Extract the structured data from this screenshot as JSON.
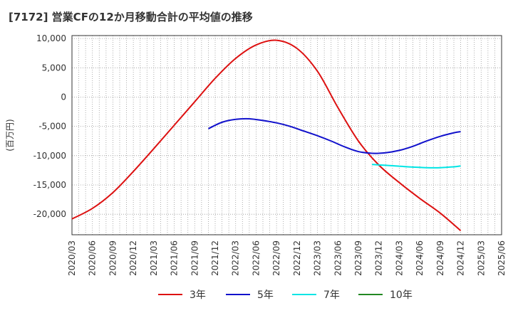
{
  "chart_data": {
    "type": "line",
    "title": "[7172]  営業CFの12か月移動合計の平均値の推移",
    "ylabel": "(百万円)",
    "xlabel": "",
    "ylim": [
      -23500,
      10500
    ],
    "yticks": [
      10000,
      5000,
      0,
      -5000,
      -10000,
      -15000,
      -20000
    ],
    "ytick_labels": [
      "10,000",
      "5,000",
      "0",
      "-5,000",
      "-10,000",
      "-15,000",
      "-20,000"
    ],
    "xticks": [
      "2020/03",
      "2020/06",
      "2020/09",
      "2020/12",
      "2021/03",
      "2021/06",
      "2021/09",
      "2021/12",
      "2022/03",
      "2022/06",
      "2022/09",
      "2022/12",
      "2023/03",
      "2023/06",
      "2023/09",
      "2023/12",
      "2024/03",
      "2024/06",
      "2024/09",
      "2024/12",
      "2025/03",
      "2025/06"
    ],
    "grid": true,
    "legend_position": "bottom",
    "series": [
      {
        "name": "3年",
        "color": "#dd1111",
        "points": [
          [
            "2020/03",
            -20800
          ],
          [
            "2020/06",
            -19000
          ],
          [
            "2020/09",
            -16300
          ],
          [
            "2020/12",
            -12700
          ],
          [
            "2021/03",
            -8800
          ],
          [
            "2021/06",
            -4800
          ],
          [
            "2021/09",
            -800
          ],
          [
            "2021/12",
            3200
          ],
          [
            "2022/03",
            6600
          ],
          [
            "2022/06",
            8900
          ],
          [
            "2022/09",
            9700
          ],
          [
            "2022/12",
            8300
          ],
          [
            "2023/03",
            4400
          ],
          [
            "2023/06",
            -1800
          ],
          [
            "2023/09",
            -7500
          ],
          [
            "2023/12",
            -11600
          ],
          [
            "2024/03",
            -14600
          ],
          [
            "2024/06",
            -17300
          ],
          [
            "2024/09",
            -19800
          ],
          [
            "2024/12",
            -22800
          ]
        ]
      },
      {
        "name": "5年",
        "color": "#1111cc",
        "points": [
          [
            "2021/11",
            -5400
          ],
          [
            "2022/01",
            -4300
          ],
          [
            "2022/03",
            -3800
          ],
          [
            "2022/05",
            -3700
          ],
          [
            "2022/07",
            -4000
          ],
          [
            "2022/09",
            -4400
          ],
          [
            "2022/11",
            -5000
          ],
          [
            "2023/01",
            -5800
          ],
          [
            "2023/03",
            -6600
          ],
          [
            "2023/05",
            -7500
          ],
          [
            "2023/07",
            -8500
          ],
          [
            "2023/09",
            -9300
          ],
          [
            "2023/11",
            -9600
          ],
          [
            "2024/01",
            -9500
          ],
          [
            "2024/03",
            -9100
          ],
          [
            "2024/05",
            -8400
          ],
          [
            "2024/07",
            -7500
          ],
          [
            "2024/09",
            -6700
          ],
          [
            "2024/11",
            -6100
          ],
          [
            "2024/12",
            -5900
          ]
        ]
      },
      {
        "name": "7年",
        "color": "#00e5e5",
        "points": [
          [
            "2023/11",
            -11500
          ],
          [
            "2024/01",
            -11650
          ],
          [
            "2024/03",
            -11800
          ],
          [
            "2024/05",
            -11950
          ],
          [
            "2024/07",
            -12050
          ],
          [
            "2024/09",
            -12050
          ],
          [
            "2024/11",
            -11900
          ],
          [
            "2024/12",
            -11750
          ]
        ]
      },
      {
        "name": "10年",
        "color": "#228822",
        "points": []
      }
    ]
  }
}
